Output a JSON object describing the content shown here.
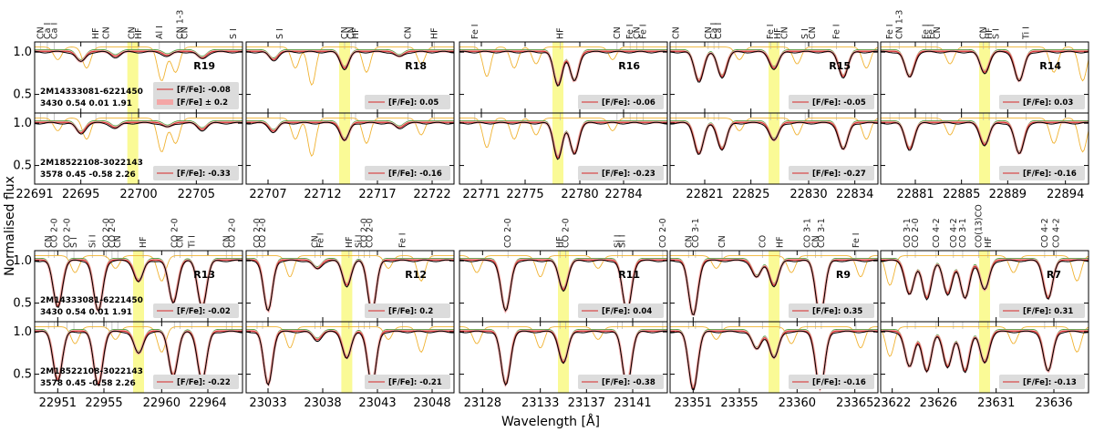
{
  "xlabel": "Wavelength [Å]",
  "ylabel": "Normalised flux",
  "yticks": [
    "1.0",
    "0.5"
  ],
  "colors": {
    "observed": "#000000",
    "fit": "#d62728",
    "band": "#f4a6a6",
    "telluric": "#f0b232",
    "hf_highlight": "#fafa96",
    "alt": "#2ca02c",
    "legend_bg": "#dcdcdc"
  },
  "legend_text": {
    "ratio": "[F/Fe]:",
    "band": "[F/Fe] ± 0.2",
    "band_value": "-0.08"
  },
  "stars": {
    "top": {
      "id": "2M14333081-6221450",
      "params": "3430  0.54  0.01  1.91"
    },
    "bottom": {
      "id": "2M18522108-3022143",
      "params": "3578  0.45  -0.58  2.26"
    }
  },
  "chart_data": [
    {
      "type": "line",
      "region": "R19",
      "xlim": [
        22691,
        22709
      ],
      "hf": 22699.5,
      "xticks": [
        "22691",
        "22695",
        "22700",
        "22705"
      ],
      "xtick_values": [
        22691,
        22695,
        22700,
        22705
      ],
      "line_labels": [
        {
          "x": 22691.5,
          "t": "CN"
        },
        {
          "x": 22692.1,
          "t": "Ca I"
        },
        {
          "x": 22692.7,
          "t": "Ca I"
        },
        {
          "x": 22696.3,
          "t": "HF"
        },
        {
          "x": 22697.2,
          "t": "CN"
        },
        {
          "x": 22699.4,
          "t": "CN"
        },
        {
          "x": 22700.0,
          "t": "HF"
        },
        {
          "x": 22701.8,
          "t": "Al I"
        },
        {
          "x": 22703.6,
          "t": "CN 1-3"
        },
        {
          "x": 22704.0,
          "t": "CN"
        },
        {
          "x": 22708.2,
          "t": "S I"
        }
      ],
      "ratio_top": "-0.08",
      "ratio_bottom": "-0.33",
      "dips": [
        {
          "x": 22695.0,
          "d": 0.12
        },
        {
          "x": 22698.0,
          "d": 0.06
        },
        {
          "x": 22702.5,
          "d": 0.05
        },
        {
          "x": 22705.5,
          "d": 0.08
        }
      ],
      "tell": [
        {
          "x": 22693.0,
          "d": 0.15
        },
        {
          "x": 22702.0,
          "d": 0.4
        },
        {
          "x": 22703.2,
          "d": 0.3
        },
        {
          "x": 22695.5,
          "d": 0.25
        }
      ]
    },
    {
      "type": "line",
      "region": "R18",
      "xlim": [
        22705,
        22724
      ],
      "hf": 22714.0,
      "xticks": [
        "22707",
        "22712",
        "22717",
        "22722"
      ],
      "xtick_values": [
        22707,
        22712,
        22717,
        22722
      ],
      "line_labels": [
        {
          "x": 22708.1,
          "t": "S I"
        },
        {
          "x": 22714.0,
          "t": "CN"
        },
        {
          "x": 22714.6,
          "t": "CN"
        },
        {
          "x": 22715.0,
          "t": "HF"
        },
        {
          "x": 22719.8,
          "t": "CN"
        },
        {
          "x": 22722.2,
          "t": "HF"
        }
      ],
      "ratio_top": "0.05",
      "ratio_bottom": "-0.16",
      "dips": [
        {
          "x": 22707.5,
          "d": 0.1
        },
        {
          "x": 22714.0,
          "d": 0.2
        },
        {
          "x": 22719.0,
          "d": 0.06
        }
      ],
      "tell": [
        {
          "x": 22709.5,
          "d": 0.25
        },
        {
          "x": 22711.0,
          "d": 0.45
        },
        {
          "x": 22716.0,
          "d": 0.3
        },
        {
          "x": 22721.0,
          "d": 0.2
        }
      ]
    },
    {
      "type": "line",
      "region": "R16",
      "xlim": [
        22769,
        22788
      ],
      "hf": 22778.0,
      "xticks": [
        "22771",
        "22775",
        "22780",
        "22784"
      ],
      "xtick_values": [
        22771,
        22775,
        22780,
        22784
      ],
      "line_labels": [
        {
          "x": 22770.4,
          "t": "Fe I"
        },
        {
          "x": 22778.2,
          "t": "HF"
        },
        {
          "x": 22783.4,
          "t": "CN"
        },
        {
          "x": 22784.6,
          "t": "Fe I"
        },
        {
          "x": 22785.2,
          "t": "CN"
        },
        {
          "x": 22785.8,
          "t": "Fe I"
        }
      ],
      "ratio_top": "-0.06",
      "ratio_bottom": "-0.23",
      "dips": [
        {
          "x": 22778.0,
          "d": 0.4
        },
        {
          "x": 22779.5,
          "d": 0.35
        }
      ],
      "tell": [
        {
          "x": 22771.5,
          "d": 0.35
        },
        {
          "x": 22774.0,
          "d": 0.25
        },
        {
          "x": 22776.0,
          "d": 0.2
        },
        {
          "x": 22783.0,
          "d": 0.15
        }
      ]
    },
    {
      "type": "line",
      "region": "R15",
      "xlim": [
        22818,
        22836
      ],
      "hf": 22827.0,
      "xticks": [
        "22821",
        "22825",
        "22830",
        "22834"
      ],
      "xtick_values": [
        22821,
        22825,
        22830,
        22834
      ],
      "line_labels": [
        {
          "x": 22818.5,
          "t": "CN"
        },
        {
          "x": 22821.3,
          "t": "CN"
        },
        {
          "x": 22821.8,
          "t": "Ca I"
        },
        {
          "x": 22822.2,
          "t": "Ca I"
        },
        {
          "x": 22826.7,
          "t": "Fe I"
        },
        {
          "x": 22827.3,
          "t": "HF"
        },
        {
          "x": 22827.9,
          "t": "CN"
        },
        {
          "x": 22829.7,
          "t": "S I"
        },
        {
          "x": 22830.3,
          "t": "CN"
        },
        {
          "x": 22832.4,
          "t": "Fe I"
        }
      ],
      "ratio_top": "-0.05",
      "ratio_bottom": "-0.27",
      "dips": [
        {
          "x": 22820.5,
          "d": 0.35
        },
        {
          "x": 22822.5,
          "d": 0.3
        },
        {
          "x": 22827.0,
          "d": 0.2
        },
        {
          "x": 22833.0,
          "d": 0.3
        }
      ],
      "tell": [
        {
          "x": 22824.0,
          "d": 0.15
        },
        {
          "x": 22829.0,
          "d": 0.2
        },
        {
          "x": 22835.0,
          "d": 0.25
        }
      ]
    },
    {
      "type": "line",
      "region": "R14",
      "xlim": [
        22878,
        22896
      ],
      "hf": 22887.0,
      "xticks": [
        "22881",
        "22885",
        "22889",
        "22894"
      ],
      "xtick_values": [
        22881,
        22885,
        22889,
        22894
      ],
      "line_labels": [
        {
          "x": 22878.8,
          "t": "Fe I"
        },
        {
          "x": 22879.6,
          "t": "CN 1-3"
        },
        {
          "x": 22881.9,
          "t": "Fe I"
        },
        {
          "x": 22882.4,
          "t": "Fe I"
        },
        {
          "x": 22882.9,
          "t": "CN"
        },
        {
          "x": 22886.9,
          "t": "CN"
        },
        {
          "x": 22887.4,
          "t": "HF"
        },
        {
          "x": 22888.0,
          "t": "S I"
        },
        {
          "x": 22890.6,
          "t": "Ti I"
        }
      ],
      "ratio_top": "0.03",
      "ratio_bottom": "-0.16",
      "dips": [
        {
          "x": 22880.5,
          "d": 0.3
        },
        {
          "x": 22887.0,
          "d": 0.25
        },
        {
          "x": 22890.0,
          "d": 0.35
        }
      ],
      "tell": [
        {
          "x": 22884.0,
          "d": 0.2
        },
        {
          "x": 22893.0,
          "d": 0.3
        },
        {
          "x": 22895.5,
          "d": 0.4
        }
      ]
    },
    {
      "type": "line",
      "region": "R13",
      "xlim": [
        22949,
        22967
      ],
      "hf": 22958.0,
      "xticks": [
        "22951",
        "22955",
        "22960",
        "22964"
      ],
      "xtick_values": [
        22951,
        22955,
        22960,
        22964
      ],
      "line_labels": [
        {
          "x": 22950.2,
          "t": "CN"
        },
        {
          "x": 22950.7,
          "t": "CO 2-0"
        },
        {
          "x": 22951.8,
          "t": "CO 2-0"
        },
        {
          "x": 22952.4,
          "t": "S I"
        },
        {
          "x": 22954.0,
          "t": "Si I"
        },
        {
          "x": 22955.2,
          "t": "CO 2-0"
        },
        {
          "x": 22955.7,
          "t": "CO 2-0"
        },
        {
          "x": 22956.2,
          "t": "CN"
        },
        {
          "x": 22958.4,
          "t": "HF"
        },
        {
          "x": 22961.1,
          "t": "CO 2-0"
        },
        {
          "x": 22961.6,
          "t": "CN"
        },
        {
          "x": 22962.6,
          "t": "Ti I"
        },
        {
          "x": 22965.6,
          "t": "CN"
        },
        {
          "x": 22966.1,
          "t": "CO 2-0"
        }
      ],
      "ratio_top": "-0.02",
      "ratio_bottom": "-0.22",
      "dips": [
        {
          "x": 22951.0,
          "d": 0.55
        },
        {
          "x": 22954.5,
          "d": 0.6
        },
        {
          "x": 22958.0,
          "d": 0.25
        },
        {
          "x": 22961.0,
          "d": 0.5
        },
        {
          "x": 22963.5,
          "d": 0.55
        }
      ],
      "tell": [
        {
          "x": 22952.5,
          "d": 0.2
        },
        {
          "x": 22956.0,
          "d": 0.15
        },
        {
          "x": 22960.0,
          "d": 0.3
        }
      ]
    },
    {
      "type": "line",
      "region": "R12",
      "xlim": [
        23031,
        23050
      ],
      "hf": 23040.2,
      "xticks": [
        "23033",
        "23038",
        "23043",
        "23048"
      ],
      "xtick_values": [
        23033,
        23038,
        23043,
        23048
      ],
      "line_labels": [
        {
          "x": 23032.0,
          "t": "CO 2-0"
        },
        {
          "x": 23032.5,
          "t": "CO 2-0"
        },
        {
          "x": 23037.3,
          "t": "CN"
        },
        {
          "x": 23037.8,
          "t": "Fe I"
        },
        {
          "x": 23040.4,
          "t": "HF"
        },
        {
          "x": 23041.3,
          "t": "Si I"
        },
        {
          "x": 23041.8,
          "t": "CO 2-0"
        },
        {
          "x": 23042.3,
          "t": "CO 2-0"
        },
        {
          "x": 23045.3,
          "t": "Fe I"
        }
      ],
      "ratio_top": "0.2",
      "ratio_bottom": "-0.21",
      "dips": [
        {
          "x": 23033.0,
          "d": 0.6
        },
        {
          "x": 23037.5,
          "d": 0.1
        },
        {
          "x": 23040.2,
          "d": 0.3
        },
        {
          "x": 23042.5,
          "d": 0.6
        }
      ],
      "tell": [
        {
          "x": 23035.0,
          "d": 0.25
        },
        {
          "x": 23044.0,
          "d": 0.15
        },
        {
          "x": 23047.0,
          "d": 0.3
        }
      ]
    },
    {
      "type": "line",
      "region": "R11",
      "xlim": [
        23126,
        23144
      ],
      "hf": 23135.0,
      "xticks": [
        "23128",
        "23133",
        "23137",
        "23141"
      ],
      "xtick_values": [
        23128,
        23133,
        23137,
        23141
      ],
      "line_labels": [
        {
          "x": 23130.2,
          "t": "CO 2-0"
        },
        {
          "x": 23134.7,
          "t": "HF"
        },
        {
          "x": 23135.2,
          "t": "CO 2-0"
        },
        {
          "x": 23139.7,
          "t": "Si I"
        },
        {
          "x": 23140.1,
          "t": "Si I"
        },
        {
          "x": 23143.6,
          "t": "CO 2-0"
        }
      ],
      "ratio_top": "0.04",
      "ratio_bottom": "-0.38",
      "dips": [
        {
          "x": 23130.0,
          "d": 0.6
        },
        {
          "x": 23135.0,
          "d": 0.35
        },
        {
          "x": 23140.5,
          "d": 0.6
        }
      ],
      "tell": [
        {
          "x": 23127.5,
          "d": 0.2
        },
        {
          "x": 23133.0,
          "d": 0.25
        },
        {
          "x": 23138.0,
          "d": 0.15
        }
      ]
    },
    {
      "type": "line",
      "region": "R9",
      "xlim": [
        23349,
        23367
      ],
      "hf": 23358.0,
      "xticks": [
        "23351",
        "23355",
        "23360",
        "23365"
      ],
      "xtick_values": [
        23351,
        23355,
        23360,
        23365
      ],
      "line_labels": [
        {
          "x": 23350.6,
          "t": "CN"
        },
        {
          "x": 23351.2,
          "t": "CO 3-1"
        },
        {
          "x": 23353.5,
          "t": "CN"
        },
        {
          "x": 23357.0,
          "t": "CO"
        },
        {
          "x": 23358.5,
          "t": "HF"
        },
        {
          "x": 23360.9,
          "t": "CO 3-1"
        },
        {
          "x": 23361.6,
          "t": "CN"
        },
        {
          "x": 23362.1,
          "t": "CO 3-1"
        },
        {
          "x": 23365.1,
          "t": "Fe I"
        }
      ],
      "ratio_top": "0.35",
      "ratio_bottom": "-0.16",
      "dips": [
        {
          "x": 23351.0,
          "d": 0.65
        },
        {
          "x": 23356.5,
          "d": 0.2
        },
        {
          "x": 23358.0,
          "d": 0.3
        },
        {
          "x": 23362.0,
          "d": 0.65
        }
      ],
      "tell": [
        {
          "x": 23353.0,
          "d": 0.15
        },
        {
          "x": 23359.5,
          "d": 0.2
        },
        {
          "x": 23365.5,
          "d": 0.25
        }
      ]
    },
    {
      "type": "line",
      "region": "R7",
      "xlim": [
        23621,
        23639
      ],
      "hf": 23630.0,
      "xticks": [
        "23622",
        "23626",
        "23631",
        "23636"
      ],
      "xtick_values": [
        23622,
        23626,
        23631,
        23636
      ],
      "line_labels": [
        {
          "x": 23623.3,
          "t": "CO 3-1"
        },
        {
          "x": 23624.0,
          "t": "CO 2-0"
        },
        {
          "x": 23625.8,
          "t": "CO 4-2"
        },
        {
          "x": 23627.3,
          "t": "CO 4-2"
        },
        {
          "x": 23628.1,
          "t": "CO 3-1"
        },
        {
          "x": 23629.5,
          "t": "CO(13)CO"
        },
        {
          "x": 23630.3,
          "t": "HF"
        },
        {
          "x": 23635.2,
          "t": "CO 4-2"
        },
        {
          "x": 23636.2,
          "t": "CO 4-2"
        }
      ],
      "ratio_top": "0.31",
      "ratio_bottom": "-0.13",
      "dips": [
        {
          "x": 23623.5,
          "d": 0.4
        },
        {
          "x": 23625.0,
          "d": 0.45
        },
        {
          "x": 23626.8,
          "d": 0.4
        },
        {
          "x": 23628.3,
          "d": 0.45
        },
        {
          "x": 23630.0,
          "d": 0.35
        },
        {
          "x": 23635.5,
          "d": 0.45
        }
      ],
      "tell": [
        {
          "x": 23621.8,
          "d": 0.35
        },
        {
          "x": 23632.5,
          "d": 0.2
        },
        {
          "x": 23638.0,
          "d": 0.3
        }
      ]
    }
  ]
}
